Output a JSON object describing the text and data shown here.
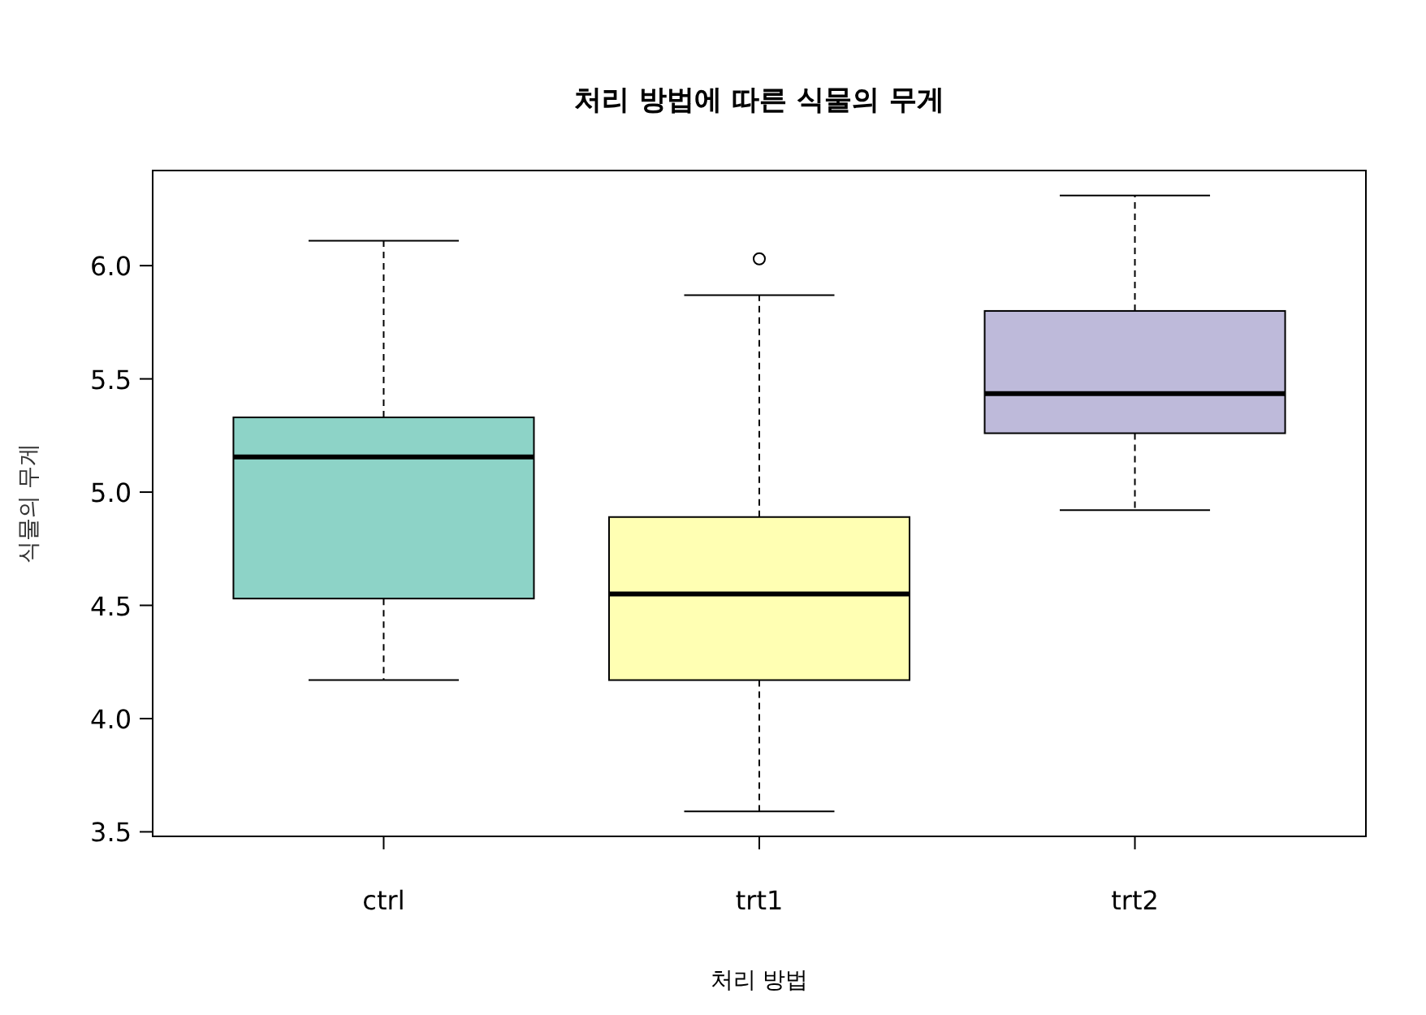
{
  "chart_data": {
    "type": "box",
    "title": "처리 방법에 따른 식물의 무게",
    "xlabel": "처리 방법",
    "ylabel": "식물의 무게",
    "categories": [
      "ctrl",
      "trt1",
      "trt2"
    ],
    "colors": [
      "#8dd3c7",
      "#ffffb3",
      "#bebada"
    ],
    "boxes": [
      {
        "low": 4.17,
        "q1": 4.53,
        "median": 5.155,
        "q3": 5.33,
        "high": 6.11
      },
      {
        "low": 3.59,
        "q1": 4.17,
        "median": 4.55,
        "q3": 4.89,
        "high": 5.87,
        "outliers": [
          6.03
        ]
      },
      {
        "low": 4.92,
        "q1": 5.26,
        "median": 5.435,
        "q3": 5.8,
        "high": 6.31
      }
    ],
    "ylim": [
      3.48,
      6.42
    ],
    "yticks": [
      3.5,
      {
        "value": 4,
        "label": "4.0"
      },
      4.5,
      {
        "value": 5,
        "label": "5.0"
      },
      5.5,
      {
        "value": 6,
        "label": "6.0"
      }
    ]
  }
}
